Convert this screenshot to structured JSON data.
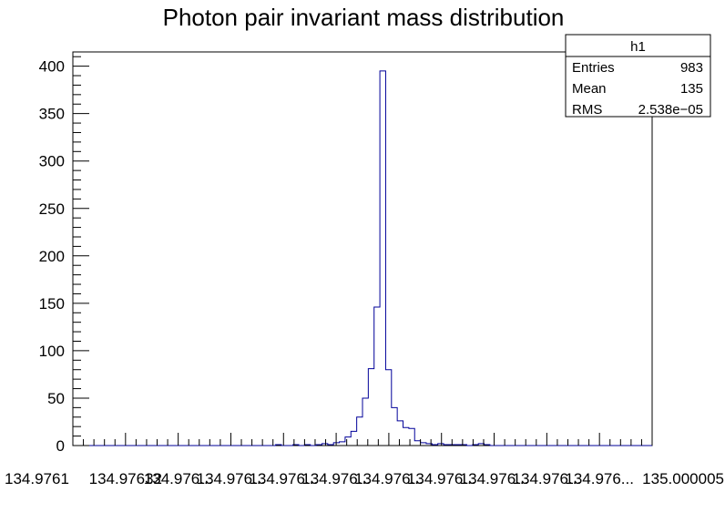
{
  "chart_data": {
    "type": "histogram",
    "title": "Photon pair invariant mass distribution",
    "xlabel": "",
    "ylabel": "",
    "ylim": [
      0,
      415
    ],
    "y_ticks": [
      0,
      50,
      100,
      150,
      200,
      250,
      300,
      350,
      400
    ],
    "x_tick_labels": [
      "134.9761",
      "134.97632",
      "134.976...",
      "134.976...",
      "134.976...",
      "134.976...",
      "134.976...",
      "134.976...",
      "134.976...",
      "134.976...",
      "134.976...",
      "135.000005"
    ],
    "bin_counts": [
      0,
      0,
      0,
      0,
      0,
      0,
      0,
      0,
      0,
      0,
      0,
      0,
      0,
      0,
      0,
      0,
      0,
      0,
      0,
      0,
      0,
      0,
      0,
      0,
      0,
      0,
      0,
      0,
      0,
      0,
      0,
      0,
      0,
      0,
      0,
      1,
      0,
      0,
      1,
      0,
      1,
      0,
      1,
      2,
      1,
      3,
      4,
      9,
      15,
      30,
      50,
      81,
      146,
      395,
      80,
      40,
      26,
      19,
      18,
      5,
      3,
      2,
      1,
      2,
      1,
      1,
      1,
      1,
      0,
      1,
      2,
      1,
      0,
      0,
      0,
      0,
      0,
      0,
      0,
      0,
      0,
      0,
      0,
      0,
      0,
      0,
      0,
      0,
      0,
      0,
      0,
      0,
      0,
      0,
      0,
      0,
      0,
      0,
      0,
      0
    ],
    "line_color": "#000099",
    "grid": false,
    "stats_box": {
      "name": "h1",
      "entries_label": "Entries",
      "entries_value": "983",
      "mean_label": "Mean",
      "mean_value": "135",
      "rms_label": "RMS",
      "rms_value": "2.538e−05",
      "position": "top-right"
    }
  }
}
